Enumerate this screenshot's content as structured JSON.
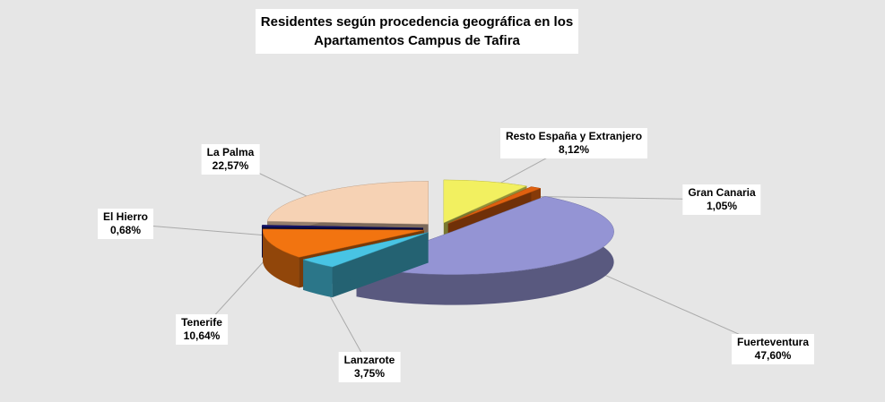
{
  "chart_data": {
    "type": "pie3d",
    "title": "Residentes según procedencia geográfica en los Apartamentos Campus de Tafira",
    "categories": [
      "Resto España y Extranjero",
      "Gran Canaria",
      "Fuerteventura",
      "Lanzarote",
      "Tenerife",
      "El Hierro",
      "La Palma"
    ],
    "values": [
      8.12,
      1.05,
      47.6,
      3.75,
      10.64,
      0.68,
      22.57
    ],
    "value_labels": [
      "8,12%",
      "1,05%",
      "47,60%",
      "3,75%",
      "10,64%",
      "0,68%",
      "22,57%"
    ],
    "colors": [
      "#f2f060",
      "#e0600f",
      "#9494d4",
      "#48c4e4",
      "#f27410",
      "#12126a",
      "#f6d2b4"
    ]
  }
}
